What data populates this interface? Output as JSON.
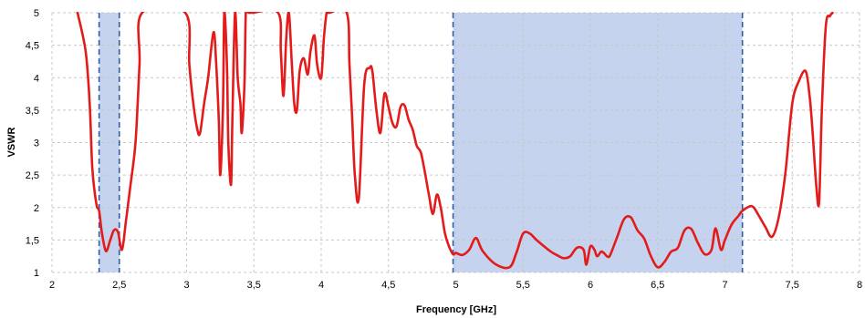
{
  "chart_data": {
    "type": "line",
    "title": "",
    "xlabel": "Frequency [GHz]",
    "ylabel": "VSWR",
    "xlim": [
      2,
      8
    ],
    "ylim": [
      1,
      5
    ],
    "xticks": [
      2,
      2.5,
      3,
      3.5,
      4,
      4.5,
      5,
      5.5,
      6,
      6.5,
      7,
      7.5,
      8
    ],
    "xtick_labels": [
      "2",
      "2,5",
      "3",
      "3,5",
      "4",
      "4,5",
      "5",
      "5,5",
      "6",
      "6,5",
      "7",
      "7,5",
      "8"
    ],
    "yticks": [
      1,
      1.5,
      2,
      2.5,
      3,
      3.5,
      4,
      4.5,
      5
    ],
    "ytick_labels": [
      "1",
      "1,5",
      "2",
      "2,5",
      "3",
      "3,5",
      "4",
      "4,5",
      "5"
    ],
    "grid": true,
    "shaded_bands": [
      [
        2.35,
        2.5
      ],
      [
        4.98,
        7.13
      ]
    ],
    "colors": {
      "line": "#e31b1b",
      "band": "#c5d3ee",
      "band_edge": "#2e5fa8",
      "grid": "#c8c8c8"
    },
    "series": [
      {
        "x": [
          2.19,
          2.25,
          2.28,
          2.3,
          2.33,
          2.35,
          2.37,
          2.4,
          2.43,
          2.46,
          2.49,
          2.52,
          2.55,
          2.58,
          2.62,
          2.65,
          2.67,
          2.99,
          3.02,
          3.05,
          3.08,
          3.1,
          3.13,
          3.16,
          3.2,
          3.22,
          3.24,
          3.25,
          3.27,
          3.28,
          3.3,
          3.31,
          3.33,
          3.34,
          3.36,
          3.38,
          3.4,
          3.41,
          3.43,
          3.44,
          3.46,
          3.47,
          3.49,
          3.68,
          3.7,
          3.72,
          3.74,
          3.76,
          3.78,
          3.8,
          3.82,
          3.84,
          3.87,
          3.9,
          3.92,
          3.95,
          3.97,
          4.0,
          4.02,
          4.04,
          4.05,
          4.06,
          4.19,
          4.21,
          4.23,
          4.25,
          4.28,
          4.32,
          4.36,
          4.38,
          4.41,
          4.44,
          4.47,
          4.5,
          4.53,
          4.56,
          4.59,
          4.62,
          4.65,
          4.68,
          4.71,
          4.74,
          4.77,
          4.8,
          4.83,
          4.86,
          4.89,
          4.92,
          4.95,
          4.98,
          5.0,
          5.05,
          5.1,
          5.15,
          5.2,
          5.3,
          5.4,
          5.45,
          5.5,
          5.55,
          5.6,
          5.7,
          5.75,
          5.8,
          5.85,
          5.9,
          5.95,
          5.97,
          6.0,
          6.03,
          6.05,
          6.08,
          6.1,
          6.13,
          6.15,
          6.2,
          6.25,
          6.3,
          6.35,
          6.4,
          6.45,
          6.5,
          6.55,
          6.6,
          6.65,
          6.7,
          6.75,
          6.8,
          6.85,
          6.9,
          6.93,
          6.97,
          7.0,
          7.05,
          7.1,
          7.13,
          7.2,
          7.25,
          7.3,
          7.35,
          7.4,
          7.45,
          7.5,
          7.55,
          7.6,
          7.63,
          7.65,
          7.68,
          7.7,
          7.72,
          7.75,
          7.78,
          7.8
        ],
        "y": [
          5,
          4.4,
          3.6,
          2.6,
          2.05,
          1.95,
          1.62,
          1.33,
          1.48,
          1.65,
          1.62,
          1.35,
          1.8,
          2.3,
          3.0,
          4.2,
          5,
          5,
          4.2,
          3.6,
          3.2,
          3.15,
          3.6,
          4.0,
          4.7,
          4.2,
          3.3,
          2.5,
          3.5,
          5,
          4.2,
          3.0,
          2.35,
          3.3,
          5,
          4.0,
          3.6,
          3.15,
          3.9,
          5,
          5,
          5,
          5,
          5,
          4.4,
          3.72,
          4.6,
          5,
          4.3,
          3.6,
          3.5,
          4.1,
          4.3,
          4.05,
          4.4,
          4.65,
          4.2,
          4.0,
          4.6,
          5,
          5,
          5,
          5,
          4.2,
          3.4,
          2.5,
          2.15,
          3.9,
          4.15,
          4.1,
          3.5,
          3.15,
          3.75,
          3.55,
          3.3,
          3.25,
          3.55,
          3.57,
          3.35,
          3.2,
          2.95,
          2.85,
          2.55,
          2.2,
          1.9,
          2.2,
          1.98,
          1.6,
          1.4,
          1.28,
          1.3,
          1.27,
          1.35,
          1.53,
          1.33,
          1.12,
          1.08,
          1.3,
          1.6,
          1.6,
          1.5,
          1.33,
          1.27,
          1.22,
          1.25,
          1.38,
          1.35,
          1.12,
          1.4,
          1.35,
          1.25,
          1.32,
          1.3,
          1.24,
          1.28,
          1.55,
          1.82,
          1.85,
          1.65,
          1.52,
          1.25,
          1.08,
          1.16,
          1.32,
          1.38,
          1.65,
          1.67,
          1.45,
          1.28,
          1.35,
          1.68,
          1.35,
          1.5,
          1.74,
          1.87,
          1.95,
          2.02,
          1.88,
          1.7,
          1.55,
          1.85,
          2.55,
          3.6,
          3.95,
          4.1,
          3.7,
          3.2,
          2.3,
          2.1,
          3.5,
          4.8,
          4.95,
          5
        ]
      }
    ]
  }
}
